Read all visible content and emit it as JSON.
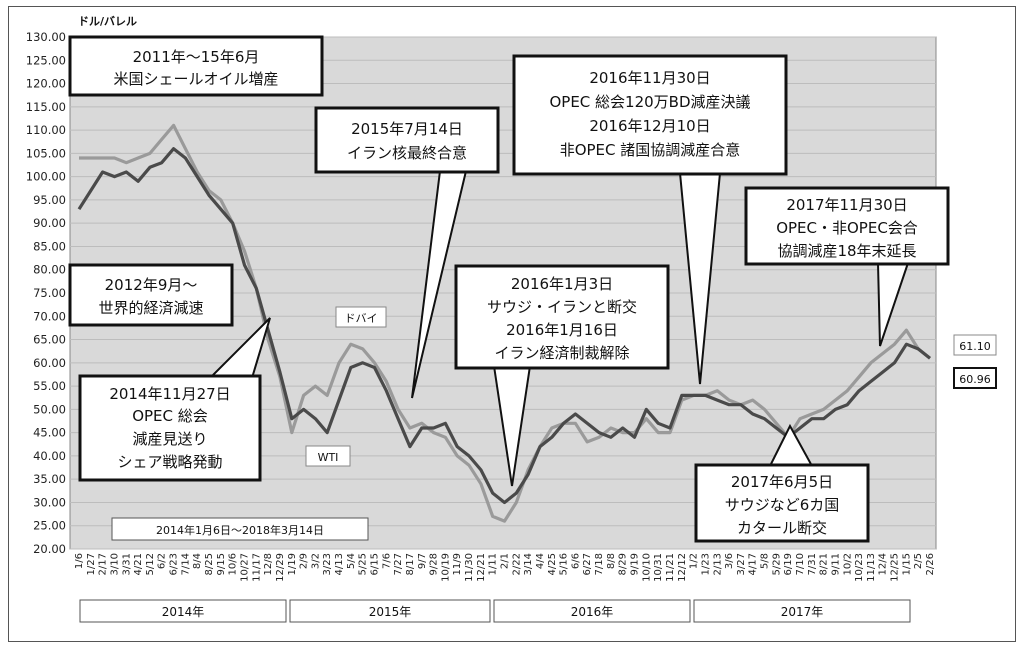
{
  "chart_data": {
    "type": "line",
    "ylabel": "ドル/バレル",
    "ylim": [
      20,
      130
    ],
    "yticks": [
      "130.00",
      "125.00",
      "120.00",
      "115.00",
      "110.00",
      "105.00",
      "100.00",
      "95.00",
      "90.00",
      "85.00",
      "80.00",
      "75.00",
      "70.00",
      "65.00",
      "60.00",
      "55.00",
      "50.00",
      "45.00",
      "40.00",
      "35.00",
      "30.00",
      "25.00",
      "20.00"
    ],
    "xtick_labels": [
      "1/6",
      "1/27",
      "2/17",
      "3/10",
      "3/31",
      "4/21",
      "5/12",
      "6/2",
      "6/23",
      "7/14",
      "8/4",
      "8/25",
      "9/15",
      "10/6",
      "10/27",
      "11/17",
      "12/8",
      "12/29",
      "1/19",
      "2/9",
      "3/2",
      "3/23",
      "4/13",
      "5/4",
      "5/25",
      "6/15",
      "7/6",
      "7/27",
      "8/17",
      "9/7",
      "9/28",
      "10/19",
      "11/9",
      "11/30",
      "12/21",
      "1/11",
      "2/1",
      "2/22",
      "3/14",
      "4/4",
      "4/25",
      "5/16",
      "6/6",
      "6/27",
      "7/18",
      "8/8",
      "8/29",
      "9/19",
      "10/10",
      "10/31",
      "11/21",
      "12/12",
      "1/2",
      "1/23",
      "2/13",
      "3/6",
      "3/27",
      "4/17",
      "5/8",
      "5/29",
      "6/19",
      "7/10",
      "7/31",
      "8/21",
      "9/11",
      "10/2",
      "10/23",
      "11/13",
      "12/4",
      "12/25",
      "1/15",
      "2/5",
      "2/26"
    ],
    "years": [
      "2014年",
      "2015年",
      "2016年",
      "2017年"
    ],
    "series": [
      {
        "name": "WTI",
        "color": "#4a4a4a",
        "x": [
          0,
          1,
          2,
          3,
          4,
          5,
          6,
          7,
          8,
          9,
          10,
          11,
          12,
          13,
          14,
          15,
          16,
          17,
          18,
          19,
          20,
          21,
          22,
          23,
          24,
          25,
          26,
          27,
          28,
          29,
          30,
          31,
          32,
          33,
          34,
          35,
          36,
          37,
          38,
          39,
          40,
          41,
          42,
          43,
          44,
          45,
          46,
          47,
          48,
          49,
          50,
          51,
          52,
          53,
          54,
          55,
          56,
          57,
          58,
          59,
          60,
          61,
          62,
          63,
          64,
          65,
          66,
          67,
          68,
          69,
          70,
          71,
          72
        ],
        "values": [
          93,
          97,
          101,
          100,
          101,
          99,
          102,
          103,
          106,
          104,
          100,
          96,
          93,
          90,
          81,
          76,
          67,
          58,
          48,
          50,
          48,
          45,
          52,
          59,
          60,
          59,
          54,
          48,
          42,
          46,
          46,
          47,
          42,
          40,
          37,
          32,
          30,
          32,
          36,
          42,
          44,
          47,
          49,
          47,
          45,
          44,
          46,
          44,
          50,
          47,
          46,
          53,
          53,
          53,
          52,
          51,
          51,
          49,
          48,
          46,
          44,
          46,
          48,
          48,
          50,
          51,
          54,
          56,
          58,
          60,
          64,
          63,
          61
        ]
      },
      {
        "name": "ドバイ",
        "color": "#9a9a9a",
        "x": [
          0,
          1,
          2,
          3,
          4,
          5,
          6,
          7,
          8,
          9,
          10,
          11,
          12,
          13,
          14,
          15,
          16,
          17,
          18,
          19,
          20,
          21,
          22,
          23,
          24,
          25,
          26,
          27,
          28,
          29,
          30,
          31,
          32,
          33,
          34,
          35,
          36,
          37,
          38,
          39,
          40,
          41,
          42,
          43,
          44,
          45,
          46,
          47,
          48,
          49,
          50,
          51,
          52,
          53,
          54,
          55,
          56,
          57,
          58,
          59,
          60,
          61,
          62,
          63,
          64,
          65,
          66,
          67,
          68,
          69,
          70,
          71,
          72
        ],
        "values": [
          104,
          104,
          104,
          104,
          103,
          104,
          105,
          108,
          111,
          106,
          101,
          97,
          95,
          90,
          84,
          76,
          65,
          57,
          45,
          53,
          55,
          53,
          60,
          64,
          63,
          60,
          56,
          50,
          46,
          47,
          45,
          44,
          40,
          38,
          34,
          27,
          26,
          30,
          37,
          42,
          46,
          47,
          47,
          43,
          44,
          46,
          45,
          45,
          48,
          45,
          45,
          52,
          53,
          53,
          54,
          52,
          51,
          52,
          50,
          47,
          44,
          48,
          49,
          50,
          52,
          54,
          57,
          60,
          62,
          64,
          67,
          63,
          61
        ]
      }
    ]
  },
  "legend_values": {
    "dubai_last": "61.10",
    "wti_last": "60.96"
  },
  "series_labels": {
    "dubai": "ドバイ",
    "wti": "WTI"
  },
  "period_label": "2014年1月6日～2018年3月14日",
  "annotations": {
    "a1": [
      "2011年～15年6月",
      "米国シェールオイル増産"
    ],
    "a2": [
      "2012年9月～",
      "世界的経済減速"
    ],
    "a3": [
      "2014年11月27日",
      "OPEC 総会",
      "減産見送り",
      "シェア戦略発動"
    ],
    "a4": [
      "2015年7月14日",
      "イラン核最終合意"
    ],
    "a5": [
      "2016年1月3日",
      "サウジ・イランと断交",
      "2016年1月16日",
      "イラン経済制裁解除"
    ],
    "a6": [
      "2016年11月30日",
      "OPEC 総会120万BD減産決議",
      "2016年12月10日",
      "非OPEC 諸国協調減産合意"
    ],
    "a7": [
      "2017年11月30日",
      "OPEC・非OPEC会合",
      "協調減産18年末延長"
    ],
    "a8": [
      "2017年6月5日",
      "サウジなど6カ国",
      "カタール断交"
    ]
  }
}
